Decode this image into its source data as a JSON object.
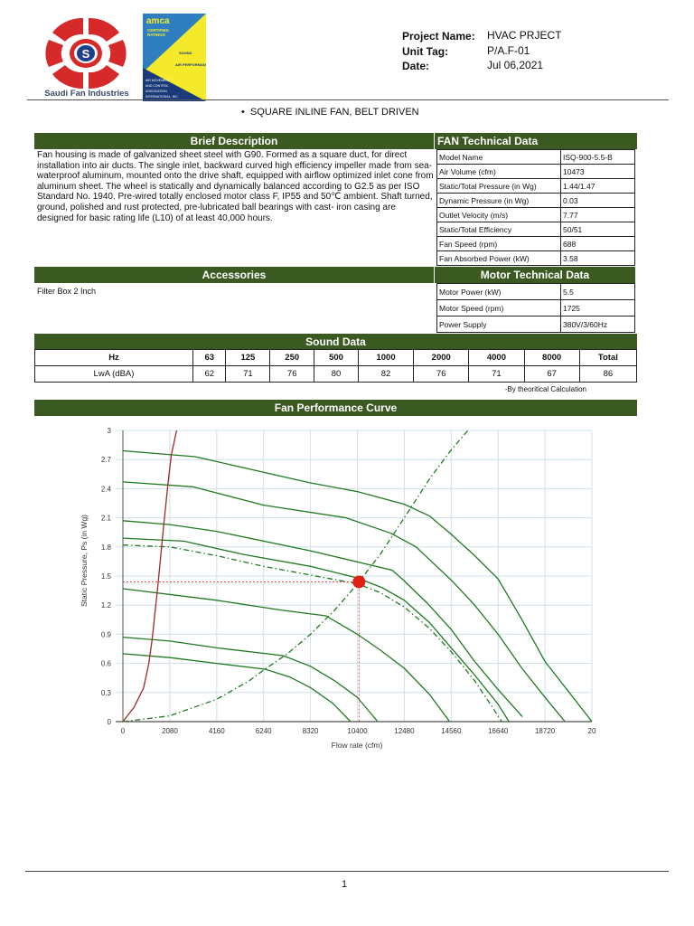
{
  "logos": {
    "company_name": "Saudi Fan Industries",
    "amca_text": [
      "amca",
      "CERTIFIED RATINGS",
      "SOUND and AIR PERFORMANCE",
      "AIR MOVEMENT AND CONTROL ASSOCIATION INTERNATIONAL, INC."
    ]
  },
  "project": {
    "name_label": "Project Name:",
    "name": "HVAC PRJECT",
    "unit_label": "Unit Tag:",
    "unit": "P/A.F-01",
    "date_label": "Date:",
    "date": "Jul 06,2021"
  },
  "product_line": "SQUARE INLINE FAN, BELT DRIVEN",
  "brief": {
    "title": "Brief Description",
    "text": "Fan housing is made of galvanized sheet steel with G90. Formed as a square duct, for direct installation into air ducts. The single inlet, backward curved high efficiency impeller made from sea-waterproof aluminum, mounted onto the drive shaft, equipped with airflow optimized inlet cone from aluminum sheet. The wheel is statically and dynamically balanced according to G2.5 as per ISO Standard No. 1940. Pre-wired totally enclosed motor class F, IP55 and 50℃ ambient. Shaft turned, ground, polished and rust protected, pre-lubricated ball bearings with cast- iron casing are designed for basic rating life (L10) of at least 40,000 hours."
  },
  "fan_tech": {
    "title": "FAN Technical Data",
    "rows": [
      [
        "Model Name",
        "ISQ-900-5.5-B"
      ],
      [
        "Air Volume (cfm)",
        "10473"
      ],
      [
        "Static/Total Pressure (in Wg)",
        "1.44/1.47"
      ],
      [
        "Dynamic Pressure (in Wg)",
        "0.03"
      ],
      [
        "Outlet Velocity (m/s)",
        "7.77"
      ],
      [
        "Static/Total Efficiency",
        "50/51"
      ],
      [
        "Fan Speed (rpm)",
        "688"
      ],
      [
        "Fan Absorbed Power (kW)",
        "3.58"
      ]
    ]
  },
  "accessories": {
    "title": "Accessories",
    "items": [
      "Filter Box 2 Inch"
    ]
  },
  "motor_tech": {
    "title": "Motor Technical Data",
    "rows": [
      [
        "Motor Power (kW)",
        "5.5"
      ],
      [
        "Motor Speed (rpm)",
        "1725"
      ],
      [
        "Power Supply",
        "380V/3/60Hz"
      ]
    ]
  },
  "sound": {
    "title": "Sound Data",
    "header": [
      "Hz",
      "63",
      "125",
      "250",
      "500",
      "1000",
      "2000",
      "4000",
      "8000",
      "Total"
    ],
    "row": [
      "LwA (dBA)",
      "62",
      "71",
      "76",
      "80",
      "82",
      "76",
      "71",
      "67",
      "86"
    ],
    "note": "-By theoritical Calculation"
  },
  "curve_title": "Fan Performance Curve",
  "chart_data": {
    "type": "line",
    "xlabel": "Flow rate (cfm)",
    "ylabel": "Static Pressure, Ps (in Wg)",
    "xlim": [
      0,
      20800
    ],
    "ylim": [
      0,
      3
    ],
    "x_ticks": [
      "0",
      "2080",
      "4160",
      "6240",
      "8320",
      "10400",
      "12480",
      "14560",
      "16640",
      "18720",
      "20"
    ],
    "y_ticks": [
      "0",
      "0.3",
      "0.6",
      "0.9",
      "1.2",
      "1.5",
      "1.8",
      "2.1",
      "2.4",
      "2.7",
      "3"
    ],
    "grid": true,
    "colors": {
      "fan_curves": "#1f7a1f",
      "power_limit": "#a0282a",
      "operating_point": "#e02010",
      "grid": "#cfe0ea"
    },
    "series": [
      {
        "style": "solid",
        "points": [
          [
            0,
            2.79
          ],
          [
            3200,
            2.73
          ],
          [
            6240,
            2.57
          ],
          [
            8320,
            2.46
          ],
          [
            10400,
            2.37
          ],
          [
            12480,
            2.24
          ],
          [
            13600,
            2.12
          ],
          [
            14560,
            1.93
          ],
          [
            15600,
            1.71
          ],
          [
            16640,
            1.47
          ],
          [
            17700,
            1.05
          ],
          [
            18720,
            0.62
          ],
          [
            19800,
            0.3
          ],
          [
            20800,
            0
          ]
        ]
      },
      {
        "style": "solid",
        "points": [
          [
            0,
            2.47
          ],
          [
            3100,
            2.42
          ],
          [
            6240,
            2.23
          ],
          [
            9900,
            2.1
          ],
          [
            11900,
            1.94
          ],
          [
            13000,
            1.8
          ],
          [
            14600,
            1.45
          ],
          [
            15600,
            1.2
          ],
          [
            16640,
            0.9
          ],
          [
            17700,
            0.55
          ],
          [
            18720,
            0.25
          ],
          [
            19610,
            0
          ]
        ]
      },
      {
        "style": "solid",
        "points": [
          [
            0,
            2.07
          ],
          [
            2080,
            2.03
          ],
          [
            4160,
            1.96
          ],
          [
            8320,
            1.76
          ],
          [
            11950,
            1.56
          ],
          [
            12480,
            1.45
          ],
          [
            13500,
            1.22
          ],
          [
            14560,
            0.95
          ],
          [
            15600,
            0.62
          ],
          [
            16640,
            0.33
          ],
          [
            17720,
            0.05
          ]
        ]
      },
      {
        "style": "solid",
        "points": [
          [
            0,
            1.89
          ],
          [
            2700,
            1.86
          ],
          [
            5400,
            1.72
          ],
          [
            8320,
            1.6
          ],
          [
            10400,
            1.48
          ],
          [
            11500,
            1.38
          ],
          [
            12480,
            1.25
          ],
          [
            13600,
            1.02
          ],
          [
            14560,
            0.76
          ],
          [
            15600,
            0.48
          ],
          [
            16640,
            0.18
          ],
          [
            17120,
            0
          ]
        ]
      },
      {
        "style": "dashdot",
        "points": [
          [
            0,
            1.82
          ],
          [
            2080,
            1.8
          ],
          [
            4160,
            1.71
          ],
          [
            6240,
            1.6
          ],
          [
            8320,
            1.51
          ],
          [
            10400,
            1.42
          ],
          [
            11400,
            1.33
          ],
          [
            12480,
            1.18
          ],
          [
            13600,
            0.96
          ],
          [
            14560,
            0.72
          ],
          [
            15600,
            0.42
          ],
          [
            16300,
            0.18
          ],
          [
            16800,
            0
          ]
        ]
      },
      {
        "style": "solid",
        "points": [
          [
            0,
            1.37
          ],
          [
            4160,
            1.25
          ],
          [
            7000,
            1.15
          ],
          [
            9000,
            1.09
          ],
          [
            10400,
            0.9
          ],
          [
            11400,
            0.74
          ],
          [
            12480,
            0.55
          ],
          [
            13600,
            0.28
          ],
          [
            14490,
            0
          ]
        ]
      },
      {
        "style": "solid",
        "points": [
          [
            0,
            0.87
          ],
          [
            2080,
            0.83
          ],
          [
            4160,
            0.76
          ],
          [
            7100,
            0.68
          ],
          [
            8320,
            0.57
          ],
          [
            9400,
            0.42
          ],
          [
            10400,
            0.25
          ],
          [
            11300,
            0
          ]
        ]
      },
      {
        "style": "solid",
        "points": [
          [
            0,
            0.7
          ],
          [
            2080,
            0.66
          ],
          [
            4160,
            0.6
          ],
          [
            6300,
            0.54
          ],
          [
            7400,
            0.46
          ],
          [
            8320,
            0.35
          ],
          [
            9300,
            0.19
          ],
          [
            10100,
            0
          ]
        ]
      },
      {
        "style": "dashdot",
        "points": [
          [
            0,
            0
          ],
          [
            2080,
            0.06
          ],
          [
            4160,
            0.23
          ],
          [
            5600,
            0.42
          ],
          [
            6240,
            0.53
          ],
          [
            7300,
            0.7
          ],
          [
            8320,
            0.9
          ],
          [
            9400,
            1.15
          ],
          [
            10400,
            1.42
          ],
          [
            11400,
            1.72
          ],
          [
            12480,
            2.1
          ],
          [
            13600,
            2.5
          ],
          [
            14560,
            2.8
          ],
          [
            15300,
            3.0
          ]
        ]
      },
      {
        "style": "power",
        "points": [
          [
            0,
            0
          ],
          [
            500,
            0.15
          ],
          [
            920,
            0.35
          ],
          [
            1150,
            0.6
          ],
          [
            1300,
            0.85
          ],
          [
            1550,
            1.4
          ],
          [
            1800,
            2.0
          ],
          [
            2000,
            2.45
          ],
          [
            2150,
            2.75
          ],
          [
            2385,
            3.0
          ]
        ]
      }
    ],
    "operating_point": {
      "x": 10473,
      "y": 1.44
    }
  },
  "footer": {
    "page": "1"
  }
}
